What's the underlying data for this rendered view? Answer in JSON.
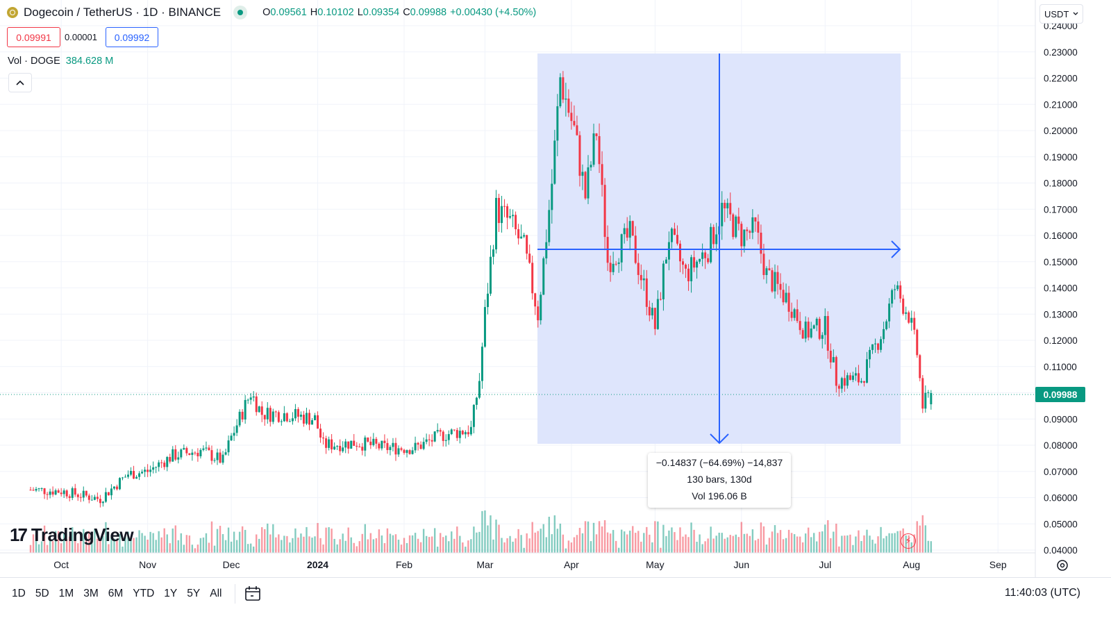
{
  "header": {
    "symbol_title": "Dogecoin / TetherUS · 1D · BINANCE",
    "ohlc": [
      {
        "key": "O",
        "value": "0.09561"
      },
      {
        "key": "H",
        "value": "0.10102"
      },
      {
        "key": "L",
        "value": "0.09354"
      },
      {
        "key": "C",
        "value": "0.09988"
      }
    ],
    "change": "+0.00430 (+4.50%)",
    "sell_price": "0.09991",
    "spread": "0.00001",
    "buy_price": "0.09992",
    "currency": "USDT"
  },
  "volume_legend": {
    "label": "Vol · DOGE",
    "value": "384.628 M"
  },
  "last_price_label": "0.09988",
  "measure": {
    "line1": "−0.14837 (−64.69%) −14,837",
    "line2": "130 bars, 130d",
    "line3": "Vol 196.06 B"
  },
  "logo_text": "TradingView",
  "bottom_bar": {
    "ranges": [
      "1D",
      "5D",
      "1M",
      "3M",
      "6M",
      "YTD",
      "1Y",
      "5Y",
      "All"
    ],
    "clock": "11:40:03 (UTC)"
  },
  "colors": {
    "up": "#089981",
    "down": "#f23645",
    "measure_fill": "#dce4fc",
    "measure_line": "#2962ff"
  },
  "chart_data": {
    "type": "candlestick",
    "ylim": [
      0.04,
      0.24
    ],
    "y_ticks": [
      "0.24000",
      "0.23000",
      "0.22000",
      "0.21000",
      "0.20000",
      "0.19000",
      "0.18000",
      "0.17000",
      "0.16000",
      "0.15000",
      "0.14000",
      "0.13000",
      "0.12000",
      "0.11000",
      "0.10000",
      "0.09000",
      "0.08000",
      "0.07000",
      "0.06000",
      "0.05000",
      "0.04000"
    ],
    "x_ticks": [
      "Oct",
      "Nov",
      "Dec",
      "2024",
      "Feb",
      "Mar",
      "Apr",
      "May",
      "Jun",
      "Jul",
      "Aug",
      "Sep"
    ],
    "close_series": [
      {
        "date": "2023-09-20",
        "close": 0.063
      },
      {
        "date": "2023-10-01",
        "close": 0.0625
      },
      {
        "date": "2023-10-15",
        "close": 0.0595
      },
      {
        "date": "2023-10-25",
        "close": 0.069
      },
      {
        "date": "2023-11-01",
        "close": 0.07
      },
      {
        "date": "2023-11-10",
        "close": 0.076
      },
      {
        "date": "2023-11-20",
        "close": 0.078
      },
      {
        "date": "2023-11-28",
        "close": 0.074
      },
      {
        "date": "2023-12-01",
        "close": 0.083
      },
      {
        "date": "2023-12-08",
        "close": 0.1
      },
      {
        "date": "2023-12-12",
        "close": 0.092
      },
      {
        "date": "2023-12-20",
        "close": 0.092
      },
      {
        "date": "2023-12-31",
        "close": 0.09
      },
      {
        "date": "2024-01-03",
        "close": 0.08
      },
      {
        "date": "2024-01-15",
        "close": 0.081
      },
      {
        "date": "2024-01-25",
        "close": 0.079
      },
      {
        "date": "2024-02-05",
        "close": 0.079
      },
      {
        "date": "2024-02-15",
        "close": 0.084
      },
      {
        "date": "2024-02-25",
        "close": 0.086
      },
      {
        "date": "2024-02-28",
        "close": 0.105
      },
      {
        "date": "2024-03-01",
        "close": 0.13
      },
      {
        "date": "2024-03-05",
        "close": 0.17
      },
      {
        "date": "2024-03-10",
        "close": 0.165
      },
      {
        "date": "2024-03-15",
        "close": 0.155
      },
      {
        "date": "2024-03-20",
        "close": 0.13
      },
      {
        "date": "2024-03-25",
        "close": 0.18
      },
      {
        "date": "2024-03-28",
        "close": 0.22
      },
      {
        "date": "2024-04-02",
        "close": 0.2
      },
      {
        "date": "2024-04-06",
        "close": 0.175
      },
      {
        "date": "2024-04-10",
        "close": 0.2
      },
      {
        "date": "2024-04-14",
        "close": 0.15
      },
      {
        "date": "2024-04-22",
        "close": 0.16
      },
      {
        "date": "2024-05-01",
        "close": 0.125
      },
      {
        "date": "2024-05-06",
        "close": 0.16
      },
      {
        "date": "2024-05-12",
        "close": 0.145
      },
      {
        "date": "2024-05-20",
        "close": 0.155
      },
      {
        "date": "2024-05-25",
        "close": 0.17
      },
      {
        "date": "2024-06-01",
        "close": 0.16
      },
      {
        "date": "2024-06-06",
        "close": 0.162
      },
      {
        "date": "2024-06-10",
        "close": 0.145
      },
      {
        "date": "2024-06-18",
        "close": 0.135
      },
      {
        "date": "2024-06-24",
        "close": 0.123
      },
      {
        "date": "2024-07-01",
        "close": 0.125
      },
      {
        "date": "2024-07-05",
        "close": 0.105
      },
      {
        "date": "2024-07-14",
        "close": 0.105
      },
      {
        "date": "2024-07-22",
        "close": 0.125
      },
      {
        "date": "2024-07-26",
        "close": 0.14
      },
      {
        "date": "2024-07-31",
        "close": 0.13
      },
      {
        "date": "2024-08-03",
        "close": 0.115
      },
      {
        "date": "2024-08-05",
        "close": 0.095
      },
      {
        "date": "2024-08-08",
        "close": 0.0999
      }
    ]
  }
}
